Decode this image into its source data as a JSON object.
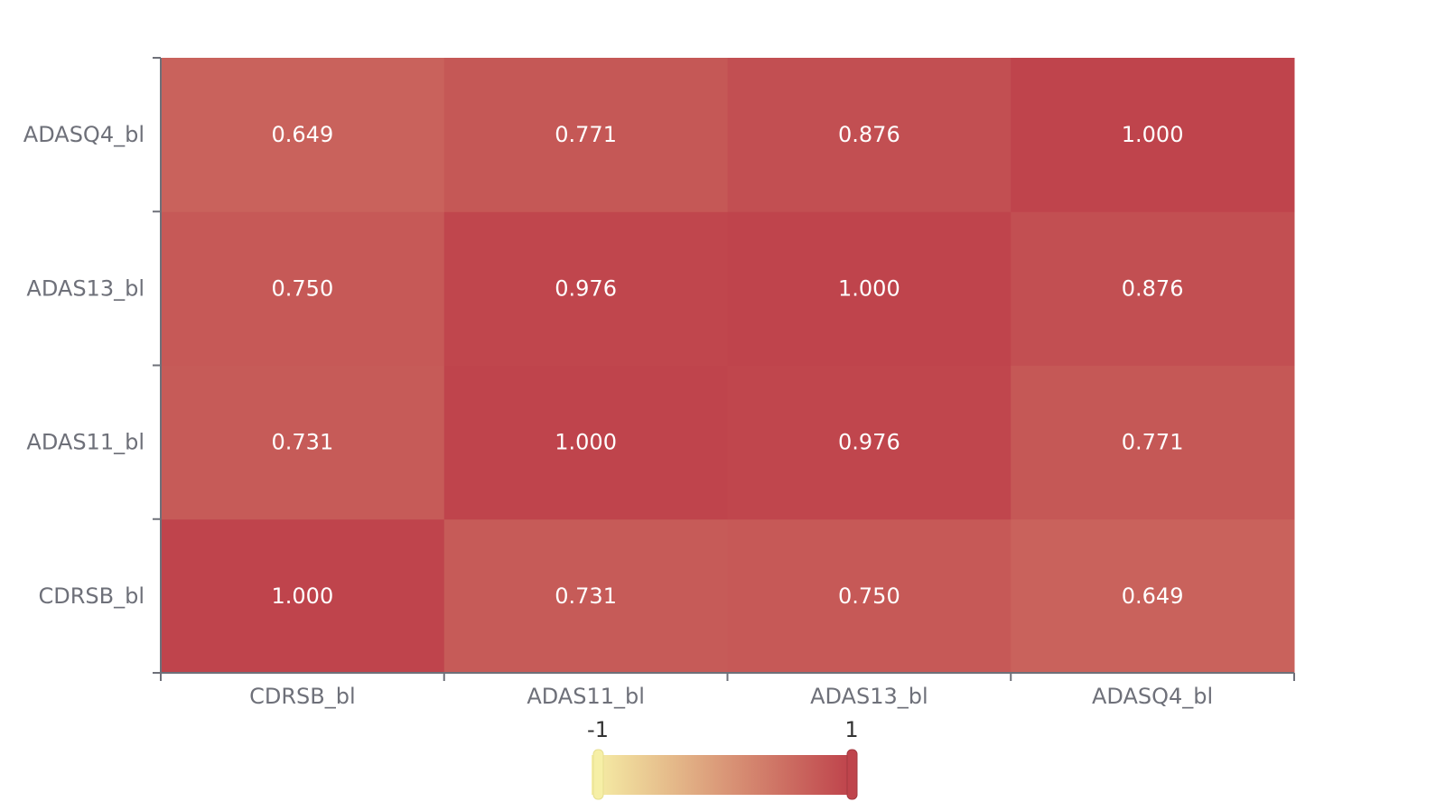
{
  "chart_data": {
    "type": "heatmap",
    "x_categories": [
      "CDRSB_bl",
      "ADAS11_bl",
      "ADAS13_bl",
      "ADASQ4_bl"
    ],
    "y_categories": [
      "CDRSB_bl",
      "ADAS11_bl",
      "ADAS13_bl",
      "ADASQ4_bl"
    ],
    "values": [
      [
        1.0,
        0.731,
        0.75,
        0.649
      ],
      [
        0.731,
        1.0,
        0.976,
        0.771
      ],
      [
        0.75,
        0.976,
        1.0,
        0.876
      ],
      [
        0.649,
        0.771,
        0.876,
        1.0
      ]
    ],
    "value_labels": [
      [
        "1.000",
        "0.731",
        "0.750",
        "0.649"
      ],
      [
        "0.731",
        "1.000",
        "0.976",
        "0.771"
      ],
      [
        "0.750",
        "0.976",
        "1.000",
        "0.876"
      ],
      [
        "0.649",
        "0.771",
        "0.876",
        "1.000"
      ]
    ],
    "visual_map": {
      "min": -1,
      "max": 1,
      "min_label": "-1",
      "max_label": "1",
      "colors": [
        "#f6efa6",
        "#bf444c"
      ]
    },
    "axis_color": "#6e7079"
  }
}
